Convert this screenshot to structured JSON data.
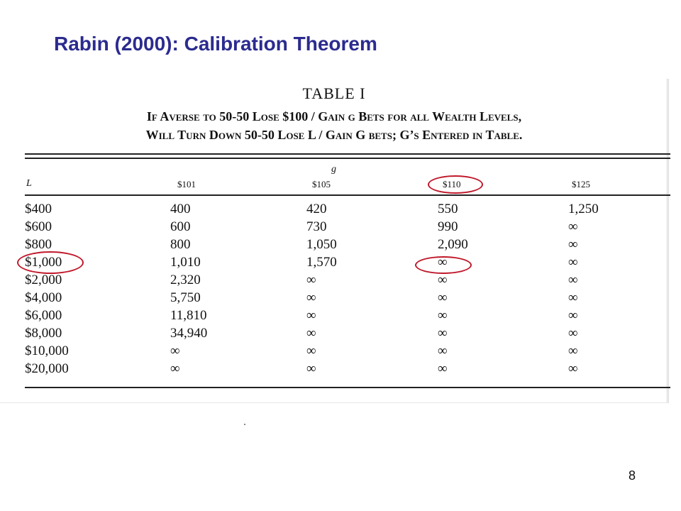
{
  "slide": {
    "title": "Rabin (2000): Calibration Theorem",
    "page_number": "8"
  },
  "table": {
    "number": "TABLE I",
    "caption_line1": "If Averse to 50-50 Lose $100 / Gain g Bets for all Wealth Levels,",
    "caption_line2": "Will Turn Down 50-50 Lose L / Gain G bets; G’s Entered in Table.",
    "g_label": "g",
    "columns": [
      "L",
      "$101",
      "$105",
      "$110",
      "$125"
    ],
    "rows": [
      [
        "$400",
        "400",
        "420",
        "550",
        "1,250"
      ],
      [
        "$600",
        "600",
        "730",
        "990",
        "∞"
      ],
      [
        "$800",
        "800",
        "1,050",
        "2,090",
        "∞"
      ],
      [
        "$1,000",
        "1,010",
        "1,570",
        "∞",
        "∞"
      ],
      [
        "$2,000",
        "2,320",
        "∞",
        "∞",
        "∞"
      ],
      [
        "$4,000",
        "5,750",
        "∞",
        "∞",
        "∞"
      ],
      [
        "$6,000",
        "11,810",
        "∞",
        "∞",
        "∞"
      ],
      [
        "$8,000",
        "34,940",
        "∞",
        "∞",
        "∞"
      ],
      [
        "$10,000",
        "∞",
        "∞",
        "∞",
        "∞"
      ],
      [
        "$20,000",
        "∞",
        "∞",
        "∞",
        "∞"
      ]
    ],
    "highlights": [
      "$110",
      "$1,000",
      "∞"
    ],
    "highlight_color": "#c0192b"
  },
  "colors": {
    "title": "#2b2b8f",
    "text": "#111111"
  }
}
